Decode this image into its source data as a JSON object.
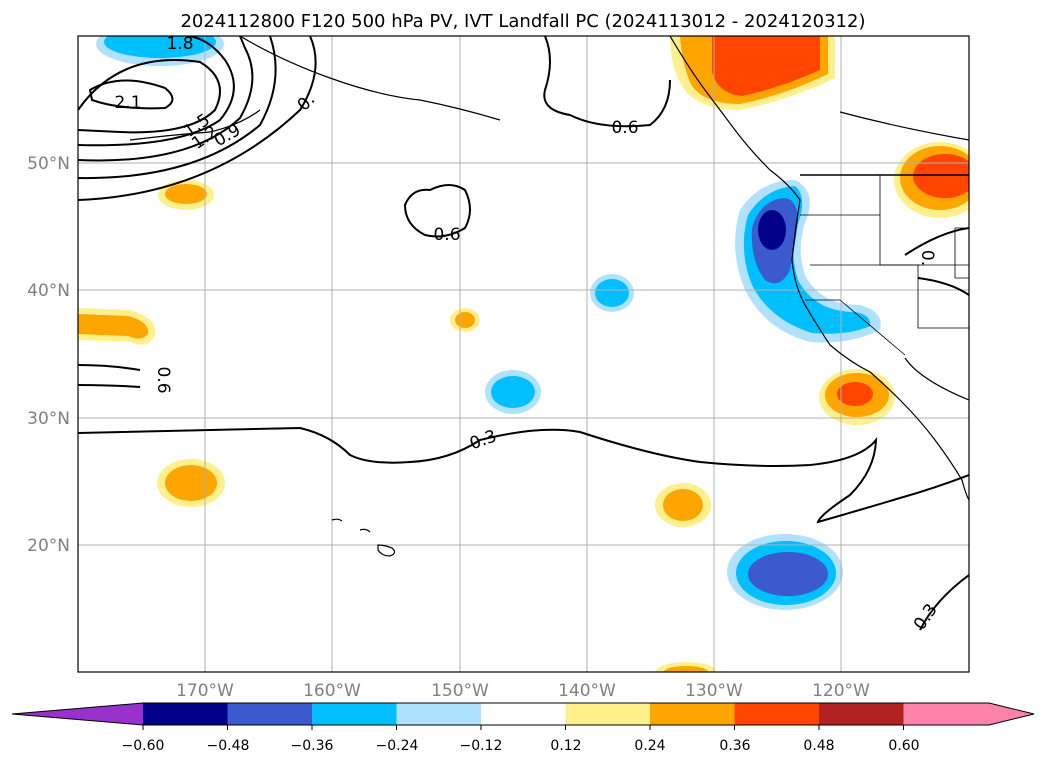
{
  "title": "2024112800 F120 500 hPa PV, IVT Landfall PC (2024113012 - 2024120312)",
  "lat_labels": [
    "50°N",
    "40°N",
    "30°N",
    "20°N"
  ],
  "lon_labels": [
    "170°W",
    "160°W",
    "150°W",
    "140°W",
    "130°W",
    "120°W"
  ],
  "contour_labels": [
    "1.8",
    "2.1",
    "1.5",
    "1.2",
    "0.9",
    "0.",
    "0.6",
    "0.6",
    "0.6",
    "0.3",
    "0.",
    "0.3"
  ],
  "colorbar": {
    "tick_labels": [
      "−0.60",
      "−0.48",
      "−0.36",
      "−0.24",
      "−0.12",
      "0.12",
      "0.24",
      "0.36",
      "0.48",
      "0.60"
    ],
    "colors": [
      "#9932cc",
      "#00008b",
      "#3a5acd",
      "#00bfff",
      "#b0e2ff",
      "#ffffff",
      "#fff08c",
      "#ffa500",
      "#ff4500",
      "#b22222",
      "#ff82ab"
    ]
  },
  "colors": {
    "pv_contour": "#000000",
    "gridline": "#b0b0b0",
    "tick_label": "#808080"
  }
}
